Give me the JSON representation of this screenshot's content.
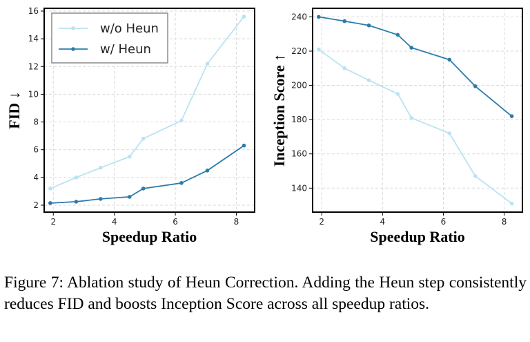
{
  "figure": {
    "caption": "Figure 7: Ablation study of Heun Correction. Adding the Heun step consistently reduces FID and boosts Inception Score across all speedup ratios."
  },
  "colors": {
    "without_heun": "#b9e3f3",
    "with_heun": "#2b7bac"
  },
  "chart_data": [
    {
      "type": "line",
      "xlabel": "Speedup Ratio",
      "ylabel": "FID ↓",
      "xlim": [
        1.7,
        8.6
      ],
      "ylim": [
        1.5,
        16.2
      ],
      "xticks": [
        2,
        4,
        6,
        8
      ],
      "yticks": [
        2,
        4,
        6,
        8,
        10,
        12,
        14,
        16
      ],
      "grid": true,
      "legend": "top-left",
      "series": [
        {
          "name": "w/o Heun",
          "color": "#b9e3f3",
          "x": [
            1.9,
            2.75,
            3.55,
            4.5,
            4.95,
            6.2,
            7.05,
            8.25
          ],
          "y": [
            3.2,
            4.0,
            4.7,
            5.5,
            6.8,
            8.1,
            12.2,
            15.6
          ]
        },
        {
          "name": "w/ Heun",
          "color": "#2b7bac",
          "x": [
            1.9,
            2.75,
            3.55,
            4.5,
            4.95,
            6.2,
            7.05,
            8.25
          ],
          "y": [
            2.15,
            2.25,
            2.45,
            2.6,
            3.2,
            3.6,
            4.5,
            6.3
          ]
        }
      ]
    },
    {
      "type": "line",
      "xlabel": "Speedup Ratio",
      "ylabel": "Inception Score ↑",
      "xlim": [
        1.7,
        8.6
      ],
      "ylim": [
        126,
        245
      ],
      "xticks": [
        2,
        4,
        6,
        8
      ],
      "yticks": [
        140,
        160,
        180,
        200,
        220,
        240
      ],
      "grid": true,
      "legend": "none",
      "series": [
        {
          "name": "w/o Heun",
          "color": "#b9e3f3",
          "x": [
            1.9,
            2.75,
            3.55,
            4.5,
            4.95,
            6.2,
            7.05,
            8.25
          ],
          "y": [
            221,
            210,
            203,
            195,
            181,
            172,
            147,
            131
          ]
        },
        {
          "name": "w/ Heun",
          "color": "#2b7bac",
          "x": [
            1.9,
            2.75,
            3.55,
            4.5,
            4.95,
            6.2,
            7.05,
            8.25
          ],
          "y": [
            240,
            237.5,
            235,
            229.5,
            222,
            215,
            199.5,
            182
          ]
        }
      ]
    }
  ]
}
